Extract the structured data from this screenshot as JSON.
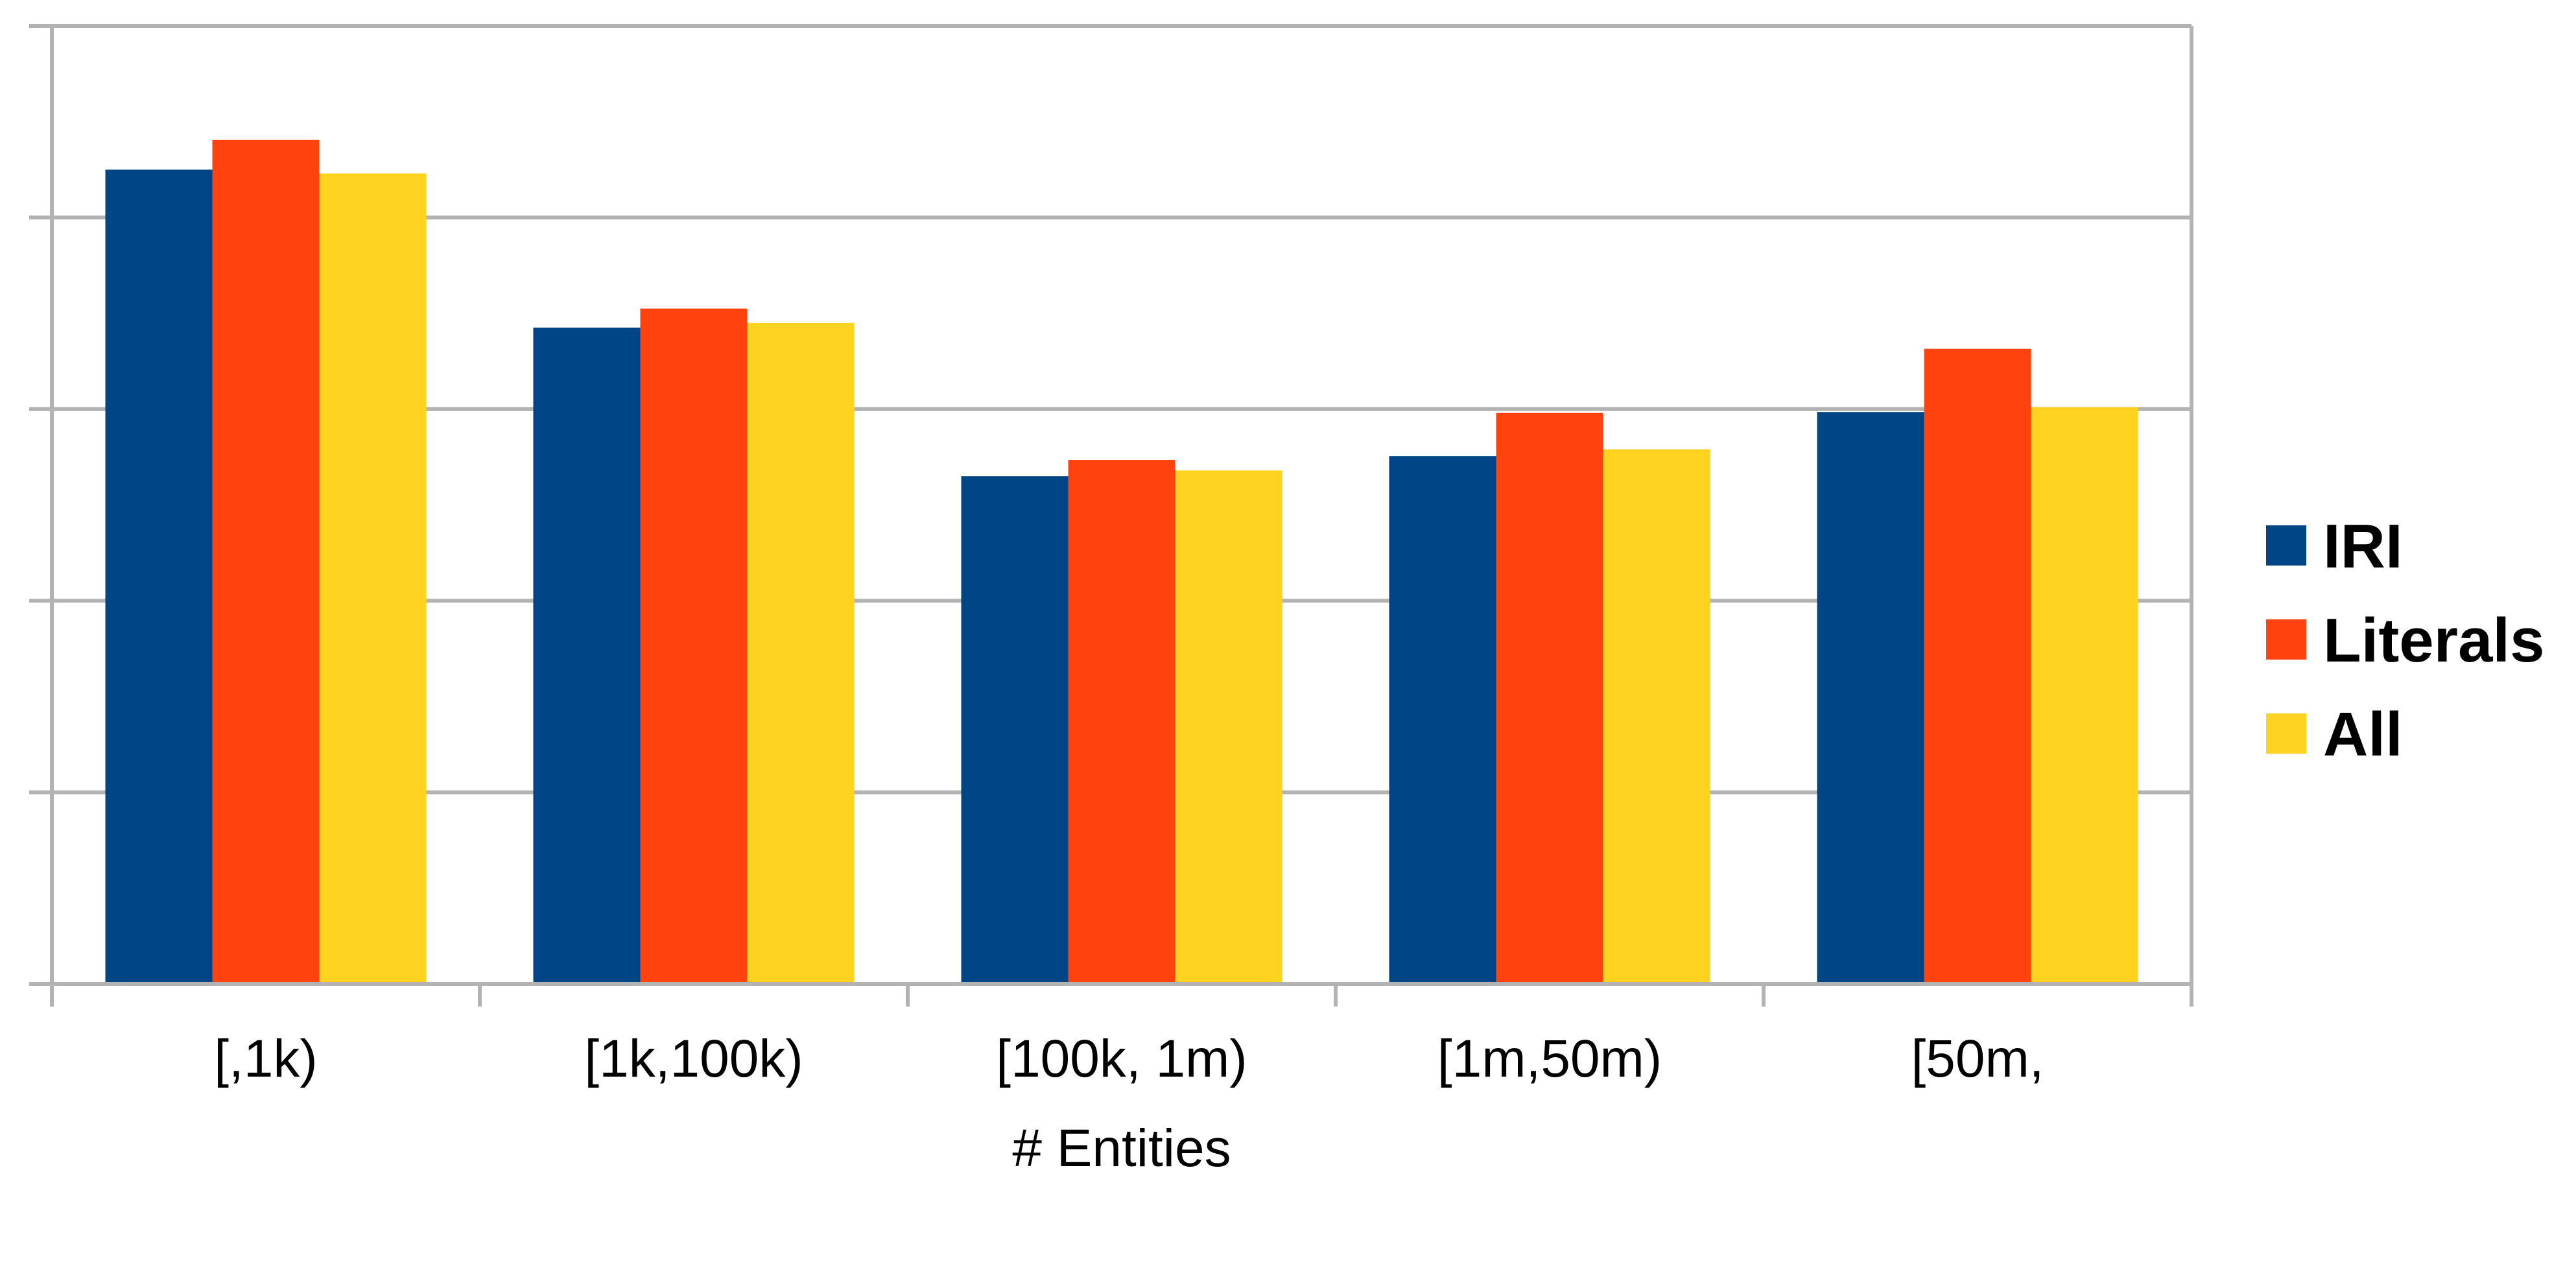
{
  "chart_data": {
    "type": "bar",
    "categories": [
      "[,1k)",
      "[1k,100k)",
      "[100k, 1m)",
      "[1m,50m)",
      "[50m,"
    ],
    "series": [
      {
        "name": "IRI",
        "color": "#004586",
        "values": [
          0.85,
          0.685,
          0.53,
          0.551,
          0.597
        ]
      },
      {
        "name": "Literals",
        "color": "#ff420e",
        "values": [
          0.881,
          0.705,
          0.547,
          0.596,
          0.663
        ]
      },
      {
        "name": "All",
        "color": "#ffd320",
        "values": [
          0.846,
          0.69,
          0.536,
          0.558,
          0.602
        ]
      }
    ],
    "title": "",
    "xlabel": "# Entities",
    "ylabel": "",
    "ylim": [
      0,
      1
    ],
    "y_ticks": [
      0,
      0.2,
      0.4,
      0.6,
      0.8,
      1.0
    ],
    "grid": true,
    "legend_position": "right",
    "colors": {
      "grid": "#b3b3b3",
      "axis": "#b3b3b3",
      "text": "#000000",
      "background": "#ffffff"
    }
  }
}
